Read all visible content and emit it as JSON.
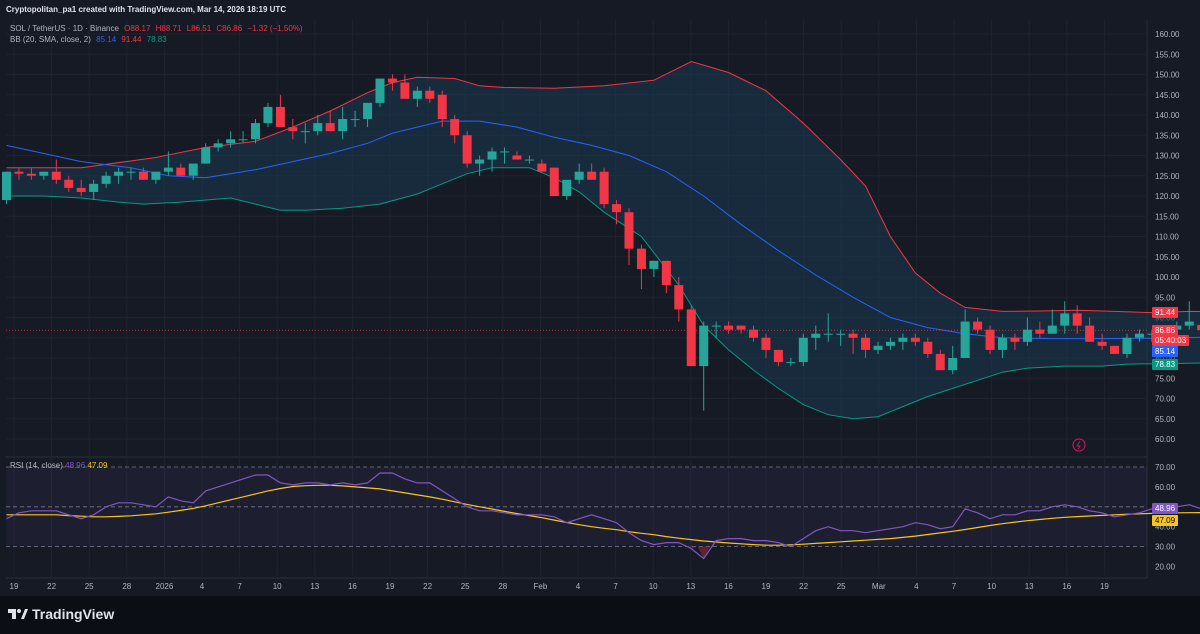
{
  "header": {
    "text": "Cryptopolitan_pa1 created with TradingView.com, Mar 14, 2026 18:19 UTC"
  },
  "legend": {
    "symbol": "SOL / TetherUS · 1D · Binance",
    "o": "O88.17",
    "h": "H88.71",
    "l": "L86.51",
    "c": "C86.86",
    "chg": "−1.32 (−1.50%)",
    "bb_label": "BB (20, SMA, close, 2)",
    "bb_basis": "85.14",
    "bb_upper": "91.44",
    "bb_lower": "78.83"
  },
  "rsi_legend": {
    "label": "RSI (14, close)",
    "rsi": "48.96",
    "ma": "47.09"
  },
  "footer": {
    "brand": "TradingView"
  },
  "colors": {
    "up": "#26a69a",
    "down": "#f23645",
    "basis": "#2962ff",
    "upper": "#f23645",
    "lower": "#089981",
    "rsi": "#7e57c2",
    "rsi_ma": "#f7c51e"
  },
  "chart_data": [
    {
      "type": "candlestick",
      "title": "SOL / TetherUS · 1D · Binance",
      "ylim": [
        58,
        163
      ],
      "y_ticks": [
        "160.00",
        "155.00",
        "150.00",
        "145.00",
        "140.00",
        "135.00",
        "130.00",
        "125.00",
        "120.00",
        "115.00",
        "110.00",
        "105.00",
        "100.00",
        "95.00",
        "90.00",
        "85.00",
        "80.00",
        "75.00",
        "70.00",
        "65.00",
        "60.00"
      ],
      "x_ticks": [
        "19",
        "22",
        "25",
        "28",
        "2026",
        "4",
        "7",
        "10",
        "13",
        "16",
        "19",
        "22",
        "25",
        "28",
        "Feb",
        "4",
        "7",
        "10",
        "13",
        "16",
        "19",
        "22",
        "25",
        "Mar",
        "4",
        "7",
        "10",
        "13",
        "16",
        "19"
      ],
      "candles": [
        [
          119,
          126,
          118,
          126
        ],
        [
          126,
          127,
          124,
          125.5
        ],
        [
          125.5,
          127,
          124,
          125
        ],
        [
          125,
          126,
          124,
          126
        ],
        [
          126,
          129,
          123,
          124
        ],
        [
          124,
          125,
          121,
          122
        ],
        [
          122,
          124,
          120,
          121
        ],
        [
          121,
          124,
          119,
          123
        ],
        [
          123,
          126,
          122,
          125
        ],
        [
          125,
          127,
          123,
          126
        ],
        [
          126,
          127,
          124,
          126
        ],
        [
          126,
          127,
          124,
          124
        ],
        [
          124,
          126,
          123,
          126
        ],
        [
          126,
          131,
          125,
          127
        ],
        [
          127,
          128,
          125,
          125
        ],
        [
          125,
          127,
          124,
          128
        ],
        [
          128,
          133,
          128,
          132
        ],
        [
          132,
          134,
          131,
          133
        ],
        [
          133,
          136,
          132,
          134
        ],
        [
          134,
          136,
          133,
          134
        ],
        [
          134,
          139,
          133,
          138
        ],
        [
          138,
          143,
          137,
          142
        ],
        [
          142,
          145,
          137,
          137
        ],
        [
          137,
          139,
          134,
          136
        ],
        [
          136,
          138,
          133,
          136
        ],
        [
          136,
          140,
          135,
          138
        ],
        [
          138,
          141,
          136,
          136
        ],
        [
          136,
          142,
          134,
          139
        ],
        [
          139,
          141,
          137,
          139
        ],
        [
          139,
          143,
          137,
          143
        ],
        [
          143,
          148,
          142,
          149
        ],
        [
          149,
          150,
          146,
          148
        ],
        [
          148,
          150,
          145,
          144
        ],
        [
          144,
          147,
          142,
          146
        ],
        [
          146,
          147,
          143,
          144
        ],
        [
          145,
          146,
          137,
          139
        ],
        [
          139,
          140,
          133,
          135
        ],
        [
          135,
          136,
          127,
          128
        ],
        [
          128,
          130,
          125,
          129
        ],
        [
          129,
          132,
          126,
          131
        ],
        [
          131,
          132,
          128,
          131
        ],
        [
          130,
          131,
          129,
          129
        ],
        [
          129,
          130,
          128,
          129
        ],
        [
          128,
          129,
          127,
          126
        ],
        [
          127,
          127,
          120,
          120
        ],
        [
          120,
          123,
          119,
          124
        ],
        [
          124,
          128,
          123,
          126
        ],
        [
          126,
          128,
          125,
          124
        ],
        [
          126,
          127,
          117,
          118
        ],
        [
          118,
          119,
          113,
          116
        ],
        [
          116,
          117,
          103,
          107
        ],
        [
          107,
          108,
          97,
          102
        ],
        [
          102,
          104,
          100,
          104
        ],
        [
          104,
          104,
          96,
          98
        ],
        [
          98,
          100,
          89,
          92
        ],
        [
          92,
          93,
          78,
          78
        ],
        [
          78,
          89,
          67,
          88
        ],
        [
          88,
          89,
          85,
          88
        ],
        [
          88,
          89,
          86,
          87
        ],
        [
          88,
          88,
          86,
          87
        ],
        [
          87,
          88,
          84,
          85
        ],
        [
          85,
          86,
          80,
          82
        ],
        [
          82,
          82,
          78,
          79
        ],
        [
          79,
          80,
          78,
          79
        ],
        [
          79,
          86,
          78,
          85
        ],
        [
          85,
          88,
          82,
          86
        ],
        [
          86,
          91,
          84,
          86
        ],
        [
          86,
          87,
          83,
          86
        ],
        [
          86,
          87,
          81,
          85
        ],
        [
          85,
          86,
          80,
          82
        ],
        [
          82,
          84,
          81,
          83
        ],
        [
          83,
          85,
          82,
          84
        ],
        [
          84,
          86,
          82,
          85
        ],
        [
          85,
          86,
          83,
          84
        ],
        [
          84,
          85,
          80,
          81
        ],
        [
          81,
          82,
          77,
          77
        ],
        [
          77,
          83,
          76,
          80
        ],
        [
          80,
          92,
          80,
          89
        ],
        [
          89,
          90,
          86,
          87
        ],
        [
          87,
          88,
          81,
          82
        ],
        [
          82,
          86,
          80,
          85
        ],
        [
          85,
          86,
          82,
          84
        ],
        [
          84,
          90,
          83,
          87
        ],
        [
          87,
          89,
          85,
          86
        ],
        [
          86,
          92,
          86,
          88
        ],
        [
          88,
          94,
          86,
          91
        ],
        [
          91,
          93,
          86,
          88
        ],
        [
          88,
          90,
          84,
          84
        ],
        [
          84,
          86,
          82,
          83
        ],
        [
          83,
          83,
          81,
          81
        ],
        [
          81,
          86,
          80,
          85
        ],
        [
          85,
          87,
          84,
          86
        ],
        [
          86,
          87,
          84,
          86
        ],
        [
          86,
          88,
          85,
          87
        ],
        [
          87,
          89,
          86,
          88
        ],
        [
          88,
          94,
          87,
          89
        ],
        [
          88.17,
          88.71,
          86.51,
          86.86
        ]
      ],
      "bb_upper": [
        [
          0,
          127
        ],
        [
          6,
          127
        ],
        [
          12,
          129.5
        ],
        [
          16,
          132
        ],
        [
          20,
          133.5
        ],
        [
          23,
          137
        ],
        [
          26,
          141
        ],
        [
          29,
          145.5
        ],
        [
          31,
          148
        ],
        [
          33,
          149.3
        ],
        [
          36,
          149
        ],
        [
          38,
          147.2
        ],
        [
          40,
          146.8
        ],
        [
          44,
          146.6
        ],
        [
          48,
          147.2
        ],
        [
          52,
          148.6
        ],
        [
          55,
          153.2
        ],
        [
          58,
          150.5
        ],
        [
          61,
          146
        ],
        [
          64,
          138
        ],
        [
          67,
          129
        ],
        [
          69,
          122.5
        ],
        [
          71,
          110
        ],
        [
          73,
          101
        ],
        [
          75,
          96
        ],
        [
          77,
          92.5
        ],
        [
          80,
          91.5
        ],
        [
          83,
          91.6
        ],
        [
          86,
          91.8
        ],
        [
          89,
          91.5
        ],
        [
          92,
          91.2
        ],
        [
          95,
          91.5
        ],
        [
          97,
          91.44
        ]
      ],
      "bb_basis": [
        [
          0,
          132.5
        ],
        [
          6,
          128.5
        ],
        [
          10,
          127
        ],
        [
          13,
          125
        ],
        [
          16,
          124.5
        ],
        [
          20,
          126.5
        ],
        [
          23,
          128.5
        ],
        [
          26,
          130.5
        ],
        [
          29,
          133
        ],
        [
          31,
          135.5
        ],
        [
          33,
          137
        ],
        [
          35,
          138.5
        ],
        [
          38,
          138.5
        ],
        [
          41,
          137
        ],
        [
          44,
          134.5
        ],
        [
          47,
          132.5
        ],
        [
          50,
          130
        ],
        [
          53,
          126
        ],
        [
          56,
          120
        ],
        [
          59,
          113
        ],
        [
          62,
          106.5
        ],
        [
          65,
          100.5
        ],
        [
          68,
          95
        ],
        [
          71,
          90
        ],
        [
          74,
          87.5
        ],
        [
          77,
          86
        ],
        [
          80,
          85
        ],
        [
          84,
          84.8
        ],
        [
          88,
          84.8
        ],
        [
          92,
          84.9
        ],
        [
          97,
          85.14
        ]
      ],
      "bb_lower": [
        [
          0,
          120
        ],
        [
          3,
          120
        ],
        [
          6,
          119.5
        ],
        [
          9,
          118.5
        ],
        [
          11,
          118
        ],
        [
          14,
          118.5
        ],
        [
          18,
          119.5
        ],
        [
          20,
          118
        ],
        [
          22,
          116.5
        ],
        [
          24,
          116.5
        ],
        [
          27,
          117
        ],
        [
          30,
          118
        ],
        [
          33,
          120.5
        ],
        [
          35,
          123
        ],
        [
          37,
          125.5
        ],
        [
          39,
          127
        ],
        [
          42,
          127
        ],
        [
          44,
          124.5
        ],
        [
          46,
          121
        ],
        [
          48,
          116
        ],
        [
          51,
          110
        ],
        [
          54,
          98
        ],
        [
          56,
          88
        ],
        [
          58,
          82
        ],
        [
          60,
          77
        ],
        [
          62,
          72.5
        ],
        [
          64,
          68.5
        ],
        [
          66,
          66
        ],
        [
          68,
          65
        ],
        [
          70,
          65.5
        ],
        [
          72,
          68
        ],
        [
          74,
          70.5
        ],
        [
          76,
          72.5
        ],
        [
          78,
          74.5
        ],
        [
          80,
          76.5
        ],
        [
          82,
          77.5
        ],
        [
          85,
          78
        ],
        [
          88,
          78
        ],
        [
          90,
          78.5
        ],
        [
          93,
          78.6
        ],
        [
          97,
          78.83
        ]
      ],
      "current_price": 86.86,
      "price_labels": {
        "upper": "91.44",
        "close": "86.86",
        "countdown": "05:40:03",
        "basis": "85.14",
        "lower": "78.83"
      }
    },
    {
      "type": "line",
      "title": "RSI (14, close)",
      "ylim": [
        15,
        72
      ],
      "y_ticks": [
        "70.00",
        "60.00",
        "50.00",
        "40.00",
        "30.00",
        "20.00"
      ],
      "bands": [
        70,
        50,
        30
      ],
      "series": [
        {
          "name": "RSI",
          "values": [
            44,
            47,
            48,
            48,
            48,
            46,
            44,
            46,
            50,
            52,
            52,
            51,
            50,
            55,
            53,
            52,
            58,
            60,
            62,
            64,
            66,
            66,
            62,
            61,
            62,
            62,
            61,
            62,
            61,
            62,
            67,
            67,
            64,
            62,
            62,
            58,
            54,
            50,
            48,
            48,
            47,
            46,
            46,
            46,
            45,
            42,
            44,
            46,
            44,
            42,
            37,
            33,
            31,
            32,
            32,
            29,
            24,
            33,
            34,
            34,
            33,
            33,
            32,
            30,
            34,
            38,
            40,
            38,
            38,
            37,
            38,
            39,
            40,
            42,
            41,
            39,
            40,
            49,
            47,
            44,
            46,
            46,
            48,
            48,
            50,
            51,
            50,
            48,
            47,
            45,
            46,
            47,
            49,
            50,
            50,
            51,
            48.96
          ]
        },
        {
          "name": "RSI MA",
          "values": [
            46,
            46,
            46,
            46,
            46,
            45.6,
            45.3,
            45,
            45,
            45.2,
            45.5,
            46,
            46.5,
            47.3,
            48.2,
            49.2,
            50.5,
            52,
            53.5,
            55,
            56.5,
            58,
            59.2,
            60.2,
            60.6,
            60.8,
            60.8,
            60.5,
            60,
            59.5,
            59,
            58,
            57,
            56,
            55,
            53.8,
            52.5,
            51.2,
            50,
            48.9,
            47.7,
            46.6,
            45.6,
            44.5,
            43.3,
            42.1,
            41,
            40,
            39.2,
            38.5,
            37.5,
            36.7,
            36,
            35,
            34.2,
            33.5,
            32.8,
            32.3,
            31.8,
            31.4,
            31,
            30.7,
            30.7,
            30.9,
            31.2,
            31.6,
            32,
            32.4,
            32.8,
            33.2,
            33.6,
            34,
            34.6,
            35.3,
            36.1,
            36.9,
            37.7,
            38.6,
            39.6,
            40.6,
            41.5,
            42.3,
            43,
            43.6,
            44.2,
            44.7,
            45.1,
            45.4,
            45.7,
            46,
            46.3,
            46.5,
            46.7,
            46.9,
            47,
            47.05,
            47.09
          ]
        }
      ],
      "price_labels": {
        "rsi": "48.96",
        "ma": "47.09"
      }
    }
  ]
}
